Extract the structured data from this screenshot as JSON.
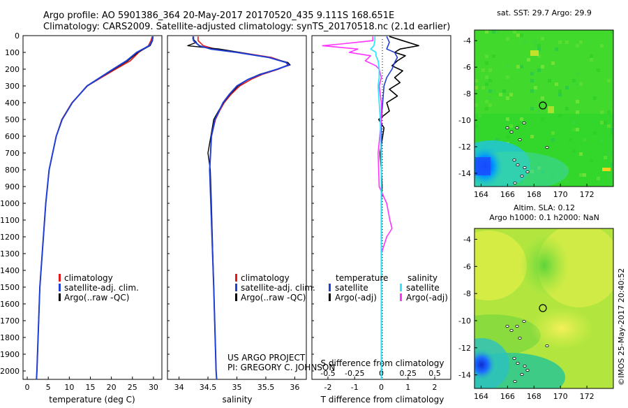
{
  "header": {
    "line1": "Argo profile: AO 5901386_364 20-May-2017 20170520_435 9.111S 168.651E",
    "line2": "Climatology: CARS2009. Satellite-adjusted climatology: synTS_20170518.nc (2.1d earlier)"
  },
  "y_axis": {
    "ticks": [
      0,
      100,
      200,
      300,
      400,
      500,
      600,
      700,
      800,
      900,
      1000,
      1100,
      1200,
      1300,
      1400,
      1500,
      1600,
      1700,
      1800,
      1900,
      2000
    ],
    "ylim": [
      0,
      2050
    ]
  },
  "credits": {
    "project": "US ARGO PROJECT",
    "pi": "PI: GREGORY C. JOHNSON",
    "imos": "©IMOS 25-May-2017 20:40:52"
  },
  "colors": {
    "climatology": "#e31a1c",
    "satellite": "#1f3fd6",
    "argo": "#000000",
    "argo_s": "#ff33ff",
    "sat_s": "#33e6ff"
  },
  "chart_data": [
    {
      "id": "temperature",
      "type": "line",
      "xlabel": "temperature (deg C)",
      "xlim": [
        -1,
        32
      ],
      "xticks": [
        0,
        5,
        10,
        15,
        20,
        25,
        30
      ],
      "legend": [
        "climatology",
        "satellite-adj. clim.",
        "Argo(..raw -QC)"
      ],
      "series": [
        {
          "name": "climatology",
          "depth": [
            5,
            30,
            60,
            100,
            150,
            200,
            250,
            300,
            400,
            500,
            600,
            800,
            1000,
            1500,
            2000,
            2050
          ],
          "values": [
            29.7,
            29.4,
            28.8,
            26.5,
            24.5,
            21.0,
            17.6,
            14.3,
            10.6,
            8.2,
            6.9,
            5.2,
            4.4,
            3.0,
            2.3,
            2.2
          ]
        },
        {
          "name": "satellite-adj. clim.",
          "depth": [
            5,
            30,
            60,
            100,
            150,
            200,
            250,
            300,
            400,
            500,
            600,
            800,
            1000,
            1500,
            2000,
            2050
          ],
          "values": [
            29.9,
            29.7,
            29.0,
            26.0,
            23.6,
            20.4,
            17.3,
            14.2,
            10.7,
            8.3,
            6.9,
            5.2,
            4.4,
            3.0,
            2.3,
            2.2
          ]
        },
        {
          "name": "Argo(..raw -QC)",
          "depth": [
            5,
            30,
            60,
            100,
            150,
            200,
            250,
            300,
            400,
            500,
            600,
            800,
            1000,
            1500,
            2000
          ],
          "values": [
            29.9,
            29.8,
            29.2,
            26.3,
            23.9,
            20.6,
            17.4,
            14.3,
            10.7,
            8.3,
            6.9,
            5.2,
            4.4,
            3.0,
            2.3
          ]
        }
      ]
    },
    {
      "id": "salinity",
      "type": "line",
      "xlabel": "salinity",
      "xlim": [
        33.8,
        36.2
      ],
      "xticks": [
        34,
        34.5,
        35,
        35.5,
        36
      ],
      "legend": [
        "climatology",
        "satellite-adj. clim.",
        "Argo(..raw -QC)"
      ],
      "series": [
        {
          "name": "climatology",
          "depth": [
            5,
            30,
            60,
            80,
            100,
            130,
            160,
            175,
            200,
            230,
            260,
            300,
            350,
            400,
            450,
            500,
            600,
            800,
            1000,
            1500,
            2000,
            2050
          ],
          "values": [
            34.33,
            34.33,
            34.42,
            34.62,
            35.05,
            35.6,
            35.85,
            35.88,
            35.72,
            35.45,
            35.25,
            35.05,
            34.9,
            34.78,
            34.7,
            34.63,
            34.56,
            34.53,
            34.55,
            34.6,
            34.64,
            34.65
          ]
        },
        {
          "name": "satellite-adj. clim.",
          "depth": [
            5,
            30,
            60,
            80,
            100,
            130,
            160,
            175,
            200,
            230,
            260,
            300,
            350,
            400,
            450,
            500,
            600,
            800,
            1000,
            1500,
            2000,
            2050
          ],
          "values": [
            34.25,
            34.25,
            34.35,
            34.55,
            35.0,
            35.55,
            35.85,
            35.9,
            35.7,
            35.42,
            35.2,
            35.0,
            34.87,
            34.76,
            34.69,
            34.62,
            34.56,
            34.53,
            34.55,
            34.6,
            34.64,
            34.65
          ]
        },
        {
          "name": "Argo(..raw -QC)",
          "depth": [
            5,
            20,
            40,
            60,
            80,
            100,
            130,
            160,
            175,
            200,
            230,
            260,
            300,
            350,
            400,
            450,
            500,
            600,
            700,
            800,
            1000,
            1500,
            2000
          ],
          "values": [
            34.24,
            34.24,
            34.3,
            34.15,
            34.7,
            35.05,
            35.55,
            35.88,
            35.92,
            35.7,
            35.4,
            35.2,
            35.02,
            34.88,
            34.77,
            34.68,
            34.6,
            34.55,
            34.5,
            34.54,
            34.56,
            34.6,
            34.64
          ]
        }
      ]
    },
    {
      "id": "difference",
      "type": "line",
      "xlabel_top": "S difference from climatology",
      "xlabel": "T difference from climatology",
      "xlim": [
        -2.6,
        2.6
      ],
      "xticks": [
        -2,
        -1,
        0,
        1,
        2
      ],
      "s_ticks": [
        -0.5,
        -0.25,
        0,
        0.25,
        0.5
      ],
      "s_tick_labels": [
        "-0.5",
        "-0.25",
        "0",
        "0.25",
        "0.5"
      ],
      "legend_temperature": {
        "title": "temperature",
        "items": [
          "satellite",
          "Argo(-adj)"
        ]
      },
      "legend_salinity": {
        "title": "salinity",
        "items": [
          "satellite",
          "Argo(-adj)"
        ]
      },
      "series": [
        {
          "name": "T satellite",
          "depth": [
            5,
            40,
            80,
            100,
            130,
            160,
            200,
            250,
            300,
            400,
            500,
            800,
            1000,
            1500,
            2050
          ],
          "values": [
            0.2,
            0.3,
            0.2,
            0.5,
            0.6,
            0.5,
            0.4,
            0.2,
            0.1,
            0.05,
            0.0,
            0.0,
            0.0,
            0.0,
            0.0
          ]
        },
        {
          "name": "T Argo(-adj)",
          "depth": [
            5,
            30,
            60,
            80,
            100,
            120,
            150,
            180,
            210,
            250,
            280,
            320,
            360,
            400,
            450,
            500,
            550,
            600,
            700,
            800,
            900,
            1000,
            1200,
            1500,
            2000
          ],
          "values": [
            0.3,
            0.8,
            1.4,
            0.7,
            0.5,
            0.9,
            0.6,
            0.4,
            0.8,
            0.5,
            0.7,
            0.3,
            0.6,
            0.2,
            0.3,
            -0.1,
            0.1,
            0.05,
            -0.05,
            0.0,
            0.03,
            0.0,
            0.0,
            0.0,
            0.0
          ]
        },
        {
          "name": "S satellite",
          "depth": [
            5,
            30,
            60,
            80,
            100,
            120,
            150,
            200,
            250,
            300,
            400,
            500,
            800,
            1000,
            1500,
            2050
          ],
          "values": [
            -0.06,
            -0.06,
            -0.07,
            -0.1,
            -0.05,
            -0.05,
            -0.03,
            -0.02,
            -0.02,
            -0.03,
            -0.02,
            -0.01,
            0.0,
            0.0,
            0.0,
            0.0
          ]
        },
        {
          "name": "S Argo(-adj)",
          "depth": [
            5,
            30,
            50,
            60,
            80,
            100,
            120,
            150,
            180,
            200,
            250,
            300,
            400,
            500,
            700,
            900,
            1000,
            1100,
            1150,
            1200,
            1300,
            1500,
            2000
          ],
          "values": [
            -0.08,
            -0.08,
            -0.38,
            -0.55,
            -0.22,
            -0.3,
            -0.1,
            -0.15,
            -0.05,
            -0.02,
            0.0,
            -0.02,
            0.0,
            0.0,
            -0.03,
            -0.02,
            0.05,
            0.08,
            0.1,
            0.05,
            0.0,
            0.0,
            0.0
          ]
        }
      ]
    },
    {
      "id": "sst_map",
      "type": "heatmap",
      "title": "sat. SST: 29.7 Argo: 29.9",
      "xticks": [
        164,
        166,
        168,
        170,
        172
      ],
      "yticks": [
        -4,
        -6,
        -8,
        -10,
        -12,
        -14
      ],
      "xlim": [
        163.5,
        174
      ],
      "ylim": [
        -15,
        -3.2
      ],
      "marker": {
        "lon": 168.651,
        "lat": -9.111
      }
    },
    {
      "id": "sla_map",
      "type": "heatmap",
      "title": "Altim. SLA: 0.12",
      "subtitle": "Argo h1000: 0.1 h2000: NaN",
      "xticks": [
        164,
        166,
        168,
        170,
        172
      ],
      "yticks": [
        -4,
        -6,
        -8,
        -10,
        -12,
        -14
      ],
      "xlim": [
        163.5,
        174
      ],
      "ylim": [
        -15,
        -3.2
      ],
      "marker": {
        "lon": 168.651,
        "lat": -9.111
      }
    }
  ]
}
